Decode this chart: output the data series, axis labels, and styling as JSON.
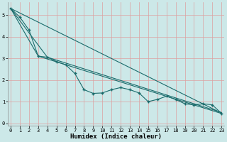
{
  "xlabel": "Humidex (Indice chaleur)",
  "background_color": "#cce8e8",
  "grid_color": "#dda0a0",
  "line_color": "#1a6b6b",
  "x": [
    0,
    1,
    2,
    3,
    4,
    5,
    6,
    7,
    8,
    9,
    10,
    11,
    12,
    13,
    14,
    15,
    16,
    17,
    18,
    19,
    20,
    21,
    22,
    23
  ],
  "line1": [
    5.3,
    4.9,
    4.3,
    3.1,
    3.05,
    2.85,
    2.7,
    2.3,
    1.55,
    1.38,
    1.4,
    1.55,
    1.65,
    1.55,
    1.4,
    1.0,
    1.1,
    1.25,
    1.1,
    0.9,
    0.85,
    0.9,
    0.85,
    0.45
  ],
  "line2_x": [
    0,
    3,
    23
  ],
  "line2_y": [
    5.3,
    3.1,
    0.45
  ],
  "line3_x": [
    0,
    4,
    23
  ],
  "line3_y": [
    5.3,
    3.05,
    0.5
  ],
  "line4_x": [
    0,
    23
  ],
  "line4_y": [
    5.3,
    0.47
  ],
  "ylim": [
    -0.1,
    5.6
  ],
  "xlim": [
    -0.3,
    23.3
  ],
  "xticks": [
    0,
    1,
    2,
    3,
    4,
    5,
    6,
    7,
    8,
    9,
    10,
    11,
    12,
    13,
    14,
    15,
    16,
    17,
    18,
    19,
    20,
    21,
    22,
    23
  ],
  "yticks": [
    0,
    1,
    2,
    3,
    4,
    5
  ],
  "tick_fontsize": 5.0,
  "xlabel_fontsize": 6.5
}
